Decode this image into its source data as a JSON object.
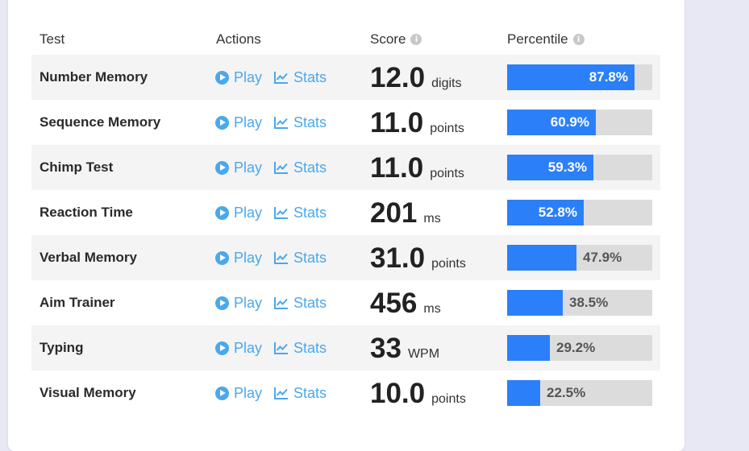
{
  "table": {
    "headers": {
      "test": "Test",
      "actions": "Actions",
      "score": "Score",
      "percentile": "Percentile"
    },
    "play_label": "Play",
    "stats_label": "Stats",
    "info_icon": "info-icon",
    "colors": {
      "accent": "#4aa8ec",
      "bar": "#2b7ff9",
      "bar_bg": "#dcdcdc",
      "page_bg": "#e7e8f3"
    },
    "rows": [
      {
        "name": "Number Memory",
        "score": "12.0",
        "unit": "digits",
        "percentile": 87.8,
        "percentile_label": "87.8%"
      },
      {
        "name": "Sequence Memory",
        "score": "11.0",
        "unit": "points",
        "percentile": 60.9,
        "percentile_label": "60.9%"
      },
      {
        "name": "Chimp Test",
        "score": "11.0",
        "unit": "points",
        "percentile": 59.3,
        "percentile_label": "59.3%"
      },
      {
        "name": "Reaction Time",
        "score": "201",
        "unit": "ms",
        "percentile": 52.8,
        "percentile_label": "52.8%"
      },
      {
        "name": "Verbal Memory",
        "score": "31.0",
        "unit": "points",
        "percentile": 47.9,
        "percentile_label": "47.9%"
      },
      {
        "name": "Aim Trainer",
        "score": "456",
        "unit": "ms",
        "percentile": 38.5,
        "percentile_label": "38.5%"
      },
      {
        "name": "Typing",
        "score": "33",
        "unit": "WPM",
        "percentile": 29.2,
        "percentile_label": "29.2%"
      },
      {
        "name": "Visual Memory",
        "score": "10.0",
        "unit": "points",
        "percentile": 22.5,
        "percentile_label": "22.5%"
      }
    ]
  }
}
